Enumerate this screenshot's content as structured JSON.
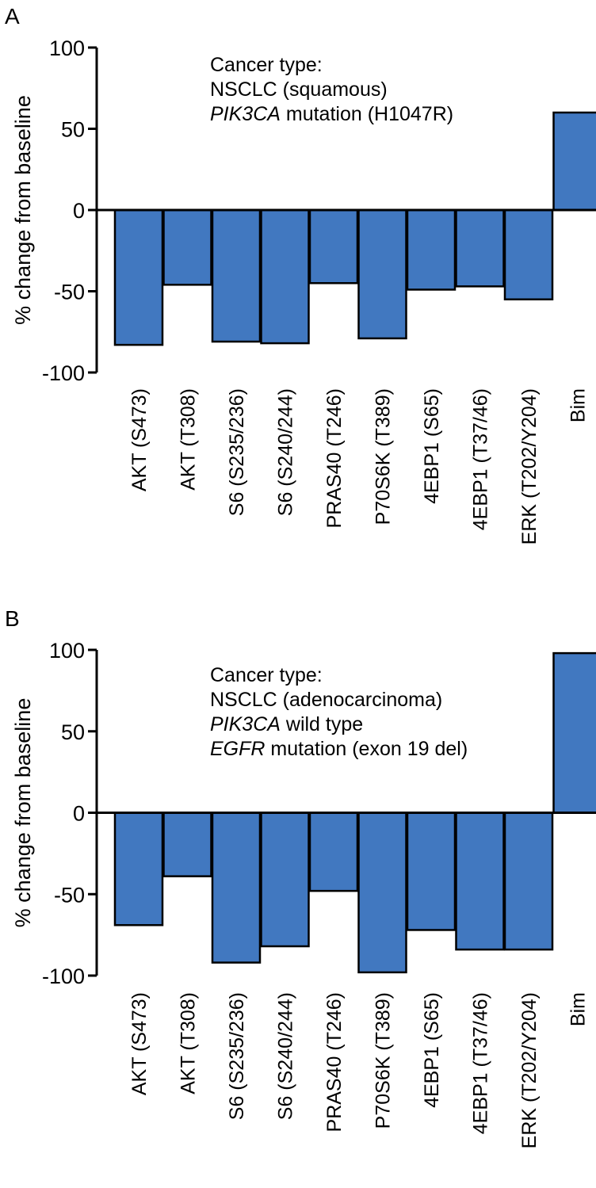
{
  "chart_data": [
    {
      "type": "bar",
      "panel_label": "A",
      "ylabel": "% change from baseline",
      "ylim": [
        -100,
        100
      ],
      "yticks": [
        "100",
        "50",
        "0",
        "-50",
        "-100"
      ],
      "categories": [
        "AKT (S473)",
        "AKT (T308)",
        "S6 (S235/236)",
        "S6 (S240/244)",
        "PRAS40 (T246)",
        "P70S6K (T389)",
        "4EBP1 (S65)",
        "4EBP1 (T37/46)",
        "ERK (T202/Y204)",
        "Bim"
      ],
      "values": [
        -83,
        -46,
        -81,
        -82,
        -45,
        -79,
        -49,
        -47,
        -55,
        60
      ],
      "annotation": [
        [
          {
            "text": "Cancer type:",
            "italic": false
          }
        ],
        [
          {
            "text": "NSCLC (squamous)",
            "italic": false
          }
        ],
        [
          {
            "text": "PIK3CA",
            "italic": true
          },
          {
            "text": " mutation (H1047R)",
            "italic": false
          }
        ]
      ],
      "bar_color": "#4178c0"
    },
    {
      "type": "bar",
      "panel_label": "B",
      "ylabel": "% change from baseline",
      "ylim": [
        -100,
        100
      ],
      "yticks": [
        "100",
        "50",
        "0",
        "-50",
        "-100"
      ],
      "categories": [
        "AKT (S473)",
        "AKT (T308)",
        "S6 (S235/236)",
        "S6 (S240/244)",
        "PRAS40 (T246)",
        "P70S6K (T389)",
        "4EBP1 (S65)",
        "4EBP1 (T37/46)",
        "ERK (T202/Y204)",
        "Bim"
      ],
      "values": [
        -69,
        -39,
        -92,
        -82,
        -48,
        -98,
        -72,
        -84,
        -84,
        98
      ],
      "annotation": [
        [
          {
            "text": "Cancer type:",
            "italic": false
          }
        ],
        [
          {
            "text": "NSCLC (adenocarcinoma)",
            "italic": false
          }
        ],
        [
          {
            "text": "PIK3CA",
            "italic": true
          },
          {
            "text": " wild type",
            "italic": false
          }
        ],
        [
          {
            "text": "EGFR",
            "italic": true
          },
          {
            "text": " mutation (exon 19 del)",
            "italic": false
          }
        ]
      ],
      "bar_color": "#4178c0"
    }
  ]
}
